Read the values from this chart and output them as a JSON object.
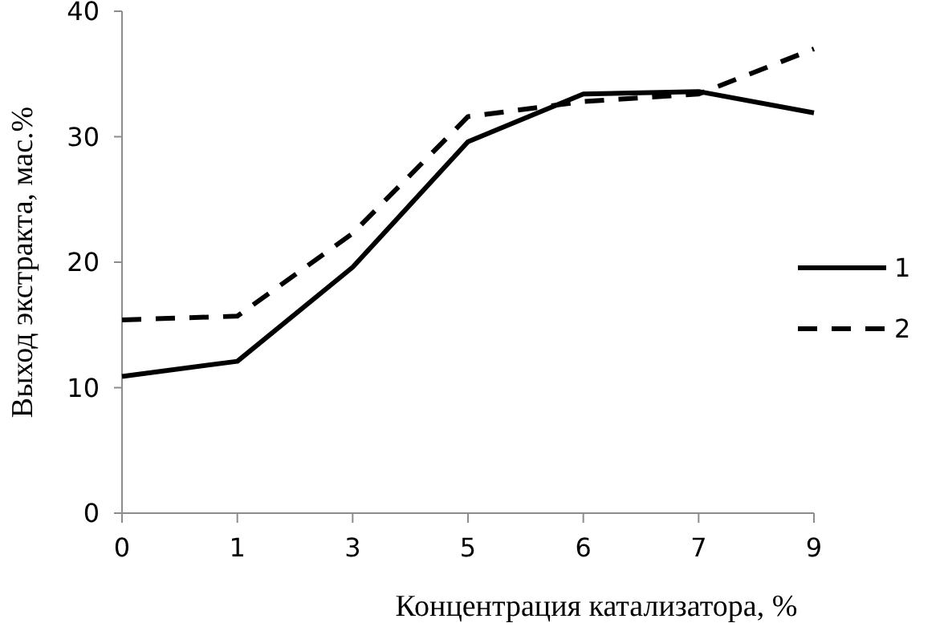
{
  "chart_data": {
    "type": "line",
    "xlabel": "Концентрация катализатора, %",
    "ylabel": "Выход экстракта, мас.%",
    "categories": [
      "0",
      "1",
      "3",
      "5",
      "6",
      "7",
      "9"
    ],
    "ylim": [
      0,
      40
    ],
    "yticks": [
      0,
      10,
      20,
      30,
      40
    ],
    "grid": false,
    "legend": "right",
    "marker": "none",
    "series": [
      {
        "name": "1",
        "color": "#000000",
        "line_style": "solid",
        "values": [
          10.9,
          12.1,
          19.6,
          29.6,
          33.4,
          33.6,
          31.9
        ]
      },
      {
        "name": "2",
        "color": "#000000",
        "line_style": "dashed",
        "values": [
          15.4,
          15.7,
          22.3,
          31.6,
          32.8,
          33.4,
          37.0
        ]
      }
    ]
  }
}
